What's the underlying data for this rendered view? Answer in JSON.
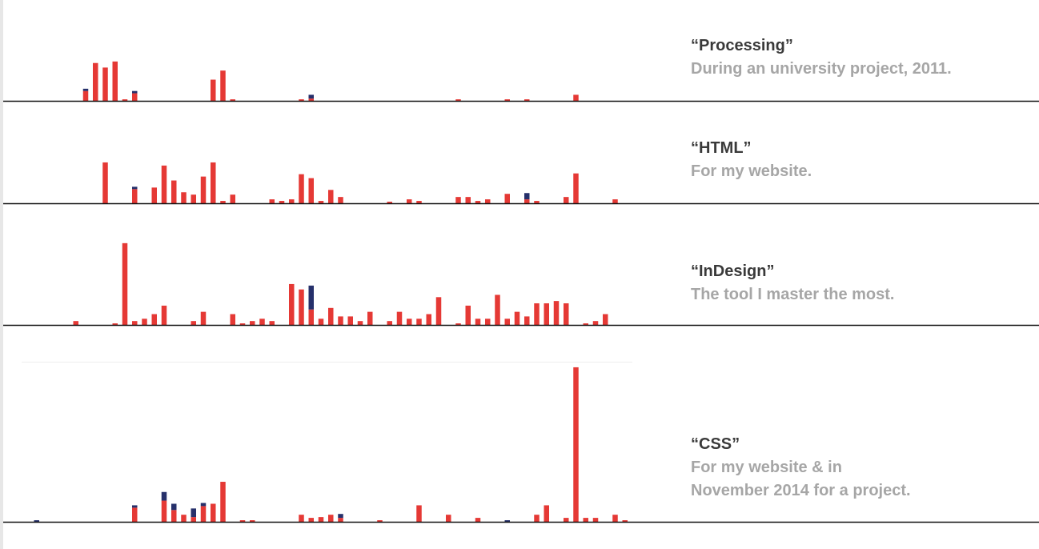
{
  "colors": {
    "primary": "#e53935",
    "secondary": "#26306b",
    "axis": "#111111",
    "grid": "#eeeeee"
  },
  "skills": [
    {
      "title": "“Processing”",
      "description": [
        "During an university project, 2011."
      ]
    },
    {
      "title": "“HTML”",
      "description": [
        "For my website."
      ]
    },
    {
      "title": "“InDesign”",
      "description": [
        "The tool I master the most."
      ]
    },
    {
      "title": "“CSS”",
      "description": [
        "For my website & in",
        "November 2014 for a project."
      ]
    }
  ],
  "chart_data": [
    {
      "type": "bar",
      "stacked": true,
      "ylim": [
        0,
        55
      ],
      "series": [
        {
          "values": [
            0,
            0,
            0,
            0,
            0,
            0,
            0,
            13,
            50,
            44,
            52,
            2,
            10,
            0,
            0,
            0,
            0,
            0,
            0,
            0,
            28,
            40,
            2,
            0,
            0,
            0,
            0,
            0,
            0,
            2,
            3,
            0,
            0,
            0,
            0,
            0,
            0,
            0,
            0,
            0,
            0,
            0,
            0,
            0,
            0,
            2,
            0,
            0,
            0,
            0,
            2,
            0,
            2,
            0,
            0,
            0,
            0,
            8,
            0,
            0,
            0,
            0,
            0,
            0,
            0
          ]
        },
        {
          "values": [
            0,
            0,
            0,
            0,
            0,
            0,
            0,
            3,
            0,
            0,
            0,
            0,
            3,
            0,
            0,
            0,
            0,
            0,
            0,
            0,
            0,
            0,
            0,
            0,
            0,
            0,
            0,
            0,
            0,
            0,
            5,
            0,
            0,
            0,
            0,
            0,
            0,
            0,
            0,
            0,
            0,
            0,
            0,
            0,
            0,
            0,
            0,
            0,
            0,
            0,
            0,
            0,
            0,
            0,
            0,
            0,
            0,
            0,
            0,
            0,
            0,
            0,
            0,
            0,
            0
          ]
        }
      ]
    },
    {
      "type": "bar",
      "stacked": true,
      "ylim": [
        0,
        55
      ],
      "series": [
        {
          "values": [
            0,
            0,
            0,
            0,
            0,
            0,
            0,
            0,
            0,
            52,
            0,
            0,
            18,
            0,
            20,
            48,
            29,
            14,
            11,
            34,
            52,
            3,
            11,
            0,
            0,
            0,
            5,
            3,
            5,
            37,
            32,
            3,
            17,
            8,
            0,
            0,
            0,
            0,
            2,
            0,
            5,
            3,
            0,
            0,
            0,
            8,
            8,
            3,
            5,
            0,
            12,
            0,
            5,
            3,
            0,
            0,
            8,
            38,
            0,
            0,
            0,
            5,
            0,
            0,
            0
          ]
        },
        {
          "values": [
            0,
            0,
            0,
            0,
            0,
            0,
            0,
            0,
            0,
            0,
            0,
            0,
            3,
            0,
            0,
            0,
            0,
            0,
            0,
            0,
            0,
            0,
            0,
            0,
            0,
            0,
            0,
            0,
            0,
            0,
            0,
            0,
            0,
            0,
            0,
            0,
            0,
            0,
            0,
            0,
            0,
            0,
            0,
            0,
            0,
            0,
            0,
            0,
            0,
            0,
            0,
            0,
            8,
            0,
            0,
            0,
            0,
            0,
            0,
            0,
            0,
            0,
            0,
            0,
            0
          ]
        }
      ]
    },
    {
      "type": "bar",
      "stacked": true,
      "ylim": [
        0,
        110
      ],
      "series": [
        {
          "values": [
            0,
            0,
            0,
            0,
            0,
            0,
            5,
            0,
            0,
            0,
            2,
            106,
            5,
            8,
            14,
            25,
            0,
            0,
            5,
            17,
            0,
            0,
            14,
            2,
            5,
            8,
            5,
            0,
            53,
            46,
            20,
            8,
            22,
            11,
            11,
            5,
            17,
            0,
            5,
            17,
            8,
            8,
            14,
            36,
            0,
            2,
            25,
            8,
            8,
            39,
            8,
            17,
            11,
            28,
            28,
            31,
            28,
            0,
            2,
            5,
            14,
            0,
            0,
            0,
            0
          ]
        },
        {
          "values": [
            0,
            0,
            0,
            0,
            0,
            0,
            0,
            0,
            0,
            0,
            0,
            0,
            0,
            0,
            0,
            0,
            0,
            0,
            0,
            0,
            0,
            0,
            0,
            0,
            0,
            0,
            0,
            0,
            0,
            0,
            31,
            0,
            0,
            0,
            0,
            0,
            0,
            0,
            0,
            0,
            0,
            0,
            0,
            0,
            0,
            0,
            0,
            0,
            0,
            0,
            0,
            0,
            0,
            0,
            0,
            0,
            0,
            0,
            0,
            0,
            0,
            0,
            0,
            0,
            0
          ]
        }
      ]
    },
    {
      "type": "bar",
      "stacked": true,
      "ylim": [
        0,
        200
      ],
      "series": [
        {
          "values": [
            0,
            0,
            0,
            0,
            0,
            0,
            0,
            0,
            0,
            0,
            0,
            0,
            18,
            0,
            0,
            27,
            15,
            9,
            6,
            20,
            23,
            51,
            0,
            2,
            2,
            0,
            0,
            0,
            0,
            9,
            5,
            6,
            9,
            5,
            0,
            0,
            0,
            2,
            0,
            0,
            0,
            21,
            0,
            0,
            9,
            0,
            0,
            5,
            0,
            0,
            0,
            0,
            0,
            9,
            21,
            0,
            5,
            197,
            5,
            5,
            0,
            9,
            2,
            0,
            0
          ]
        },
        {
          "values": [
            0,
            0,
            2,
            0,
            0,
            0,
            0,
            0,
            0,
            0,
            0,
            0,
            3,
            0,
            0,
            11,
            8,
            0,
            11,
            4,
            0,
            0,
            0,
            0,
            0,
            0,
            0,
            0,
            0,
            0,
            0,
            0,
            0,
            5,
            0,
            0,
            0,
            0,
            0,
            0,
            0,
            0,
            0,
            0,
            0,
            0,
            0,
            0,
            0,
            0,
            2,
            0,
            0,
            0,
            0,
            0,
            0,
            0,
            0,
            0,
            0,
            0,
            0,
            0,
            0
          ]
        }
      ]
    }
  ]
}
